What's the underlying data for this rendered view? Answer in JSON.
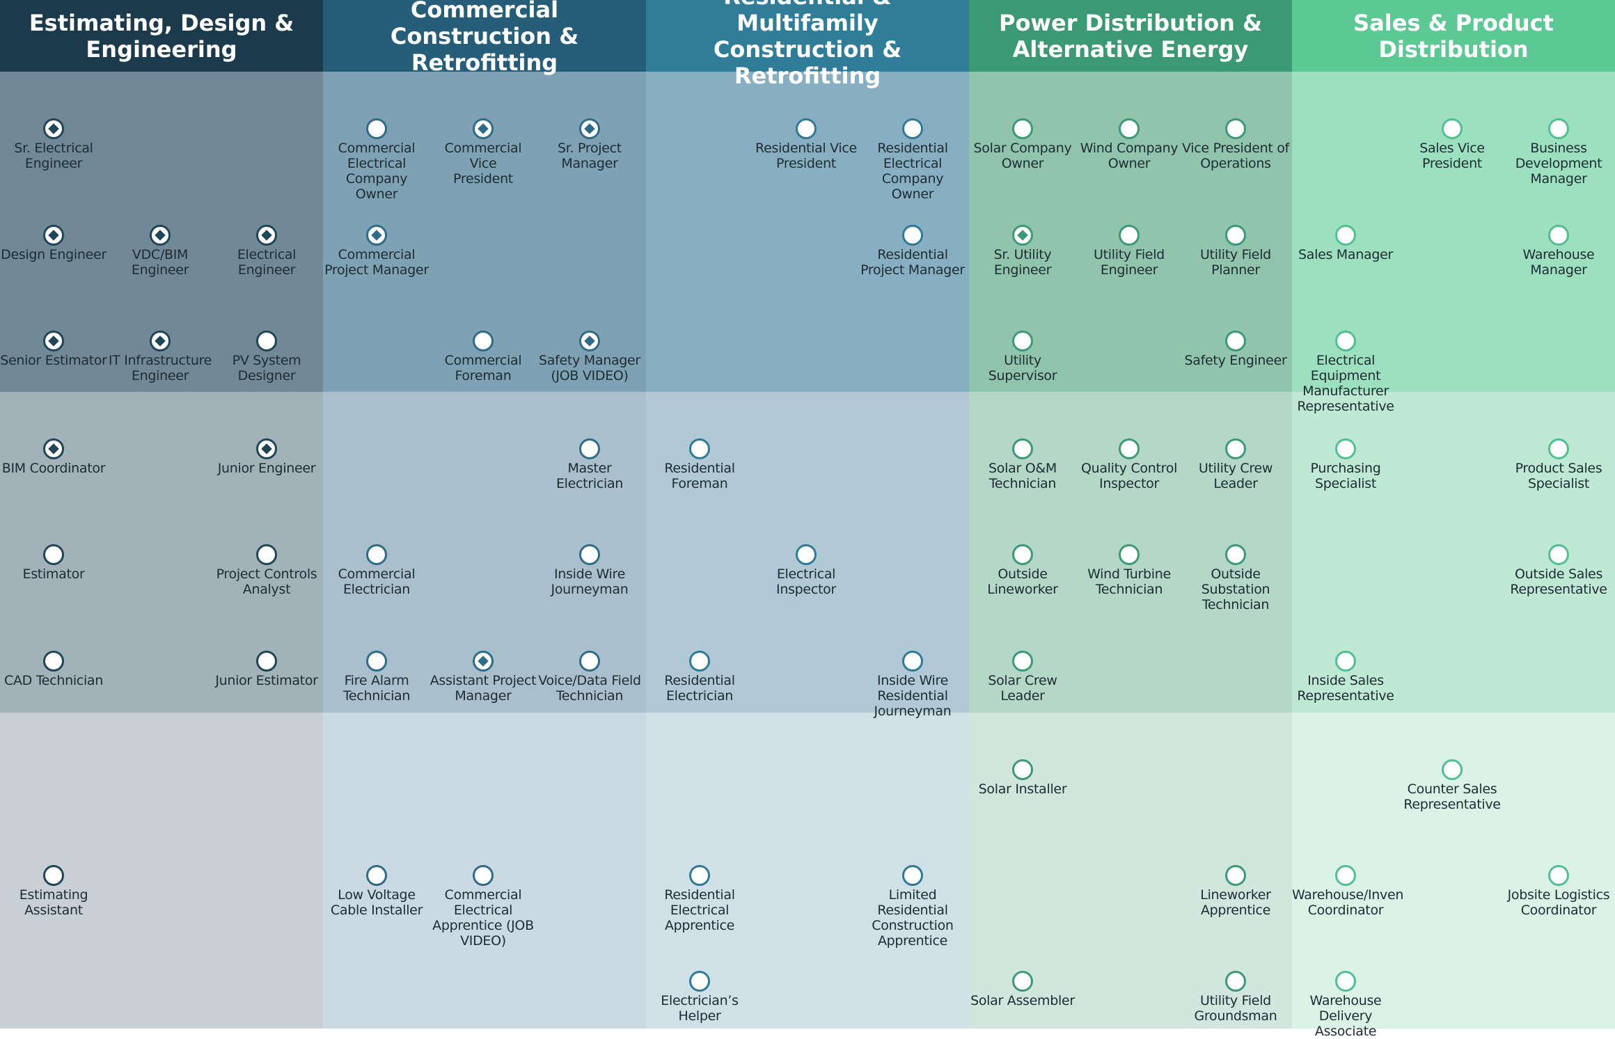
{
  "columns": [
    {
      "title_lines": [
        "Estimating, Design &",
        "Engineering"
      ],
      "header_color": "#1b3a4b",
      "band_colors": [
        "#718896",
        "#a3b1b9",
        "#c8d0d6"
      ],
      "circle_color": "#1f4656"
    },
    {
      "title_lines": [
        "Commercial Construction &",
        "Retrofitting"
      ],
      "header_color": "#265e7a",
      "band_colors": [
        "#7ea1b3",
        "#a9c0cc",
        "#cbdae2"
      ],
      "circle_color": "#2e6b87"
    },
    {
      "title_lines": [
        "Residential & Multifamily",
        "Construction & Retrofitting"
      ],
      "header_color": "#2f7d99",
      "band_colors": [
        "#88afc1",
        "#b0c9d5",
        "#d0e0e7"
      ],
      "circle_color": "#2e7a96"
    },
    {
      "title_lines": [
        "Power Distribution &",
        "Alternative Energy"
      ],
      "header_color": "#3b9a73",
      "band_colors": [
        "#90c4ac",
        "#b4d7c7",
        "#d1e6dd"
      ],
      "circle_color": "#3a9a78"
    },
    {
      "title_lines": [
        "Sales & Product Distribution"
      ],
      "header_color": "#5cc894",
      "band_colors": [
        "#9ce0c0",
        "#bfe9d5",
        "#daf3e6"
      ],
      "circle_color": "#4fc08f"
    }
  ],
  "nodes": [
    {
      "c": 0,
      "s": 0,
      "r": 0,
      "lines": [
        "Sr. Electrical",
        "Engineer"
      ],
      "marked": true
    },
    {
      "c": 0,
      "s": 0,
      "r": 1,
      "lines": [
        "Design Engineer"
      ],
      "marked": true
    },
    {
      "c": 0,
      "s": 1,
      "r": 1,
      "lines": [
        "VDC/BIM",
        "Engineer"
      ],
      "marked": true
    },
    {
      "c": 0,
      "s": 2,
      "r": 1,
      "lines": [
        "Electrical",
        "Engineer"
      ],
      "marked": true
    },
    {
      "c": 0,
      "s": 0,
      "r": 2,
      "lines": [
        "Senior Estimator"
      ],
      "marked": true
    },
    {
      "c": 0,
      "s": 1,
      "r": 2,
      "lines": [
        "IT Infrastructure",
        "Engineer"
      ],
      "marked": true
    },
    {
      "c": 0,
      "s": 2,
      "r": 2,
      "lines": [
        "PV System",
        "Designer"
      ],
      "marked": false
    },
    {
      "c": 0,
      "s": 0,
      "r": 3,
      "lines": [
        "BIM Coordinator"
      ],
      "marked": true
    },
    {
      "c": 0,
      "s": 2,
      "r": 3,
      "lines": [
        "Junior Engineer"
      ],
      "marked": true
    },
    {
      "c": 0,
      "s": 0,
      "r": 4,
      "lines": [
        "Estimator"
      ],
      "marked": false
    },
    {
      "c": 0,
      "s": 2,
      "r": 4,
      "lines": [
        "Project Controls",
        "Analyst"
      ],
      "marked": false
    },
    {
      "c": 0,
      "s": 0,
      "r": 5,
      "lines": [
        "CAD Technician"
      ],
      "marked": false
    },
    {
      "c": 0,
      "s": 2,
      "r": 5,
      "lines": [
        "Junior Estimator"
      ],
      "marked": false
    },
    {
      "c": 0,
      "s": 0,
      "r": 7,
      "lines": [
        "Estimating",
        "Assistant"
      ],
      "marked": false
    },
    {
      "c": 1,
      "s": 0,
      "r": 0,
      "lines": [
        "Commercial",
        "Electrical",
        "Company Owner"
      ],
      "marked": false
    },
    {
      "c": 1,
      "s": 1,
      "r": 0,
      "lines": [
        "Commercial Vice",
        "President"
      ],
      "marked": true
    },
    {
      "c": 1,
      "s": 2,
      "r": 0,
      "lines": [
        "Sr. Project",
        "Manager"
      ],
      "marked": true
    },
    {
      "c": 1,
      "s": 0,
      "r": 1,
      "lines": [
        "Commercial",
        "Project Manager"
      ],
      "marked": true
    },
    {
      "c": 1,
      "s": 1,
      "r": 2,
      "lines": [
        "Commercial",
        "Foreman"
      ],
      "marked": false
    },
    {
      "c": 1,
      "s": 2,
      "r": 2,
      "lines": [
        "Safety Manager",
        "(JOB VIDEO)"
      ],
      "marked": true
    },
    {
      "c": 1,
      "s": 2,
      "r": 3,
      "lines": [
        "Master",
        "Electrician"
      ],
      "marked": false
    },
    {
      "c": 1,
      "s": 0,
      "r": 4,
      "lines": [
        "Commercial",
        "Electrician"
      ],
      "marked": false
    },
    {
      "c": 1,
      "s": 2,
      "r": 4,
      "lines": [
        "Inside Wire",
        "Journeyman"
      ],
      "marked": false
    },
    {
      "c": 1,
      "s": 0,
      "r": 5,
      "lines": [
        "Fire Alarm",
        "Technician"
      ],
      "marked": false
    },
    {
      "c": 1,
      "s": 1,
      "r": 5,
      "lines": [
        "Assistant Project",
        "Manager"
      ],
      "marked": true
    },
    {
      "c": 1,
      "s": 2,
      "r": 5,
      "lines": [
        "Voice/Data Field",
        "Technician"
      ],
      "marked": false
    },
    {
      "c": 1,
      "s": 0,
      "r": 7,
      "lines": [
        "Low Voltage",
        "Cable Installer"
      ],
      "marked": false
    },
    {
      "c": 1,
      "s": 1,
      "r": 7,
      "lines": [
        "Commercial",
        "Electrical",
        "Apprentice (JOB",
        "VIDEO)"
      ],
      "marked": false
    },
    {
      "c": 2,
      "s": 1,
      "r": 0,
      "lines": [
        "Residential Vice",
        "President"
      ],
      "marked": false
    },
    {
      "c": 2,
      "s": 2,
      "r": 0,
      "lines": [
        "Residential",
        "Electrical",
        "Company Owner"
      ],
      "marked": false
    },
    {
      "c": 2,
      "s": 2,
      "r": 1,
      "lines": [
        "Residential",
        "Project Manager"
      ],
      "marked": false
    },
    {
      "c": 2,
      "s": 0,
      "r": 3,
      "lines": [
        "Residential",
        "Foreman"
      ],
      "marked": false
    },
    {
      "c": 2,
      "s": 1,
      "r": 4,
      "lines": [
        "Electrical",
        "Inspector"
      ],
      "marked": false
    },
    {
      "c": 2,
      "s": 0,
      "r": 5,
      "lines": [
        "Residential",
        "Electrician"
      ],
      "marked": false
    },
    {
      "c": 2,
      "s": 2,
      "r": 5,
      "lines": [
        "Inside Wire",
        "Residential",
        "Journeyman"
      ],
      "marked": false
    },
    {
      "c": 2,
      "s": 0,
      "r": 7,
      "lines": [
        "Residential",
        "Electrical",
        "Apprentice"
      ],
      "marked": false
    },
    {
      "c": 2,
      "s": 2,
      "r": 7,
      "lines": [
        "Limited",
        "Residential",
        "Construction",
        "Apprentice"
      ],
      "marked": false
    },
    {
      "c": 2,
      "s": 0,
      "r": 8,
      "lines": [
        "Electrician’s",
        "Helper"
      ],
      "marked": false
    },
    {
      "c": 3,
      "s": 0,
      "r": 0,
      "lines": [
        "Solar Company",
        "Owner"
      ],
      "marked": false
    },
    {
      "c": 3,
      "s": 1,
      "r": 0,
      "lines": [
        "Wind Company",
        "Owner"
      ],
      "marked": false
    },
    {
      "c": 3,
      "s": 2,
      "r": 0,
      "lines": [
        "Vice President of",
        "Operations"
      ],
      "marked": false
    },
    {
      "c": 3,
      "s": 0,
      "r": 1,
      "lines": [
        "Sr. Utility",
        "Engineer"
      ],
      "marked": true
    },
    {
      "c": 3,
      "s": 1,
      "r": 1,
      "lines": [
        "Utility Field",
        "Engineer"
      ],
      "marked": false
    },
    {
      "c": 3,
      "s": 2,
      "r": 1,
      "lines": [
        "Utility Field",
        "Planner"
      ],
      "marked": false
    },
    {
      "c": 3,
      "s": 0,
      "r": 2,
      "lines": [
        "Utility Supervisor"
      ],
      "marked": false
    },
    {
      "c": 3,
      "s": 2,
      "r": 2,
      "lines": [
        "Safety Engineer"
      ],
      "marked": false
    },
    {
      "c": 3,
      "s": 0,
      "r": 3,
      "lines": [
        "Solar O&M",
        "Technician"
      ],
      "marked": false
    },
    {
      "c": 3,
      "s": 1,
      "r": 3,
      "lines": [
        "Quality Control",
        "Inspector"
      ],
      "marked": false
    },
    {
      "c": 3,
      "s": 2,
      "r": 3,
      "lines": [
        "Utility Crew",
        "Leader"
      ],
      "marked": false
    },
    {
      "c": 3,
      "s": 0,
      "r": 4,
      "lines": [
        "Outside",
        "Lineworker"
      ],
      "marked": false
    },
    {
      "c": 3,
      "s": 1,
      "r": 4,
      "lines": [
        "Wind Turbine",
        "Technician"
      ],
      "marked": false
    },
    {
      "c": 3,
      "s": 2,
      "r": 4,
      "lines": [
        "Outside",
        "Substation",
        "Technician"
      ],
      "marked": false
    },
    {
      "c": 3,
      "s": 0,
      "r": 5,
      "lines": [
        "Solar Crew",
        "Leader"
      ],
      "marked": false
    },
    {
      "c": 3,
      "s": 0,
      "r": 6,
      "lines": [
        "Solar Installer"
      ],
      "marked": false
    },
    {
      "c": 3,
      "s": 2,
      "r": 7,
      "lines": [
        "Lineworker",
        "Apprentice"
      ],
      "marked": false
    },
    {
      "c": 3,
      "s": 0,
      "r": 8,
      "lines": [
        "Solar Assembler"
      ],
      "marked": false
    },
    {
      "c": 3,
      "s": 2,
      "r": 8,
      "lines": [
        "Utility Field",
        "Groundsman"
      ],
      "marked": false
    },
    {
      "c": 4,
      "s": 1,
      "r": 0,
      "lines": [
        "Sales Vice",
        "President"
      ],
      "marked": false
    },
    {
      "c": 4,
      "s": 2,
      "r": 0,
      "lines": [
        "Business",
        "Development",
        "Manager"
      ],
      "marked": false
    },
    {
      "c": 4,
      "s": 0,
      "r": 1,
      "lines": [
        "Sales Manager"
      ],
      "marked": false
    },
    {
      "c": 4,
      "s": 2,
      "r": 1,
      "lines": [
        "Warehouse",
        "Manager"
      ],
      "marked": false
    },
    {
      "c": 4,
      "s": 0,
      "r": 2,
      "lines": [
        "Electrical",
        "Equipment",
        "Manufacturer",
        "Representative"
      ],
      "marked": false
    },
    {
      "c": 4,
      "s": 0,
      "r": 3,
      "lines": [
        "Purchasing",
        "Specialist"
      ],
      "marked": false
    },
    {
      "c": 4,
      "s": 2,
      "r": 3,
      "lines": [
        "Product Sales",
        "Specialist"
      ],
      "marked": false
    },
    {
      "c": 4,
      "s": 2,
      "r": 4,
      "lines": [
        "Outside Sales",
        "Representative"
      ],
      "marked": false
    },
    {
      "c": 4,
      "s": 0,
      "r": 5,
      "lines": [
        "Inside Sales",
        "Representative"
      ],
      "marked": false
    },
    {
      "c": 4,
      "s": 1,
      "r": 6,
      "lines": [
        "Counter Sales",
        "Representative"
      ],
      "marked": false
    },
    {
      "c": 4,
      "s": 0,
      "r": 7,
      "lines": [
        "Warehouse/Inven",
        "Coordinator"
      ],
      "marked": false
    },
    {
      "c": 4,
      "s": 2,
      "r": 7,
      "lines": [
        "Jobsite Logistics",
        "Coordinator"
      ],
      "marked": false
    },
    {
      "c": 4,
      "s": 0,
      "r": 8,
      "lines": [
        "Warehouse",
        "Delivery",
        "Associate"
      ],
      "marked": false
    }
  ]
}
